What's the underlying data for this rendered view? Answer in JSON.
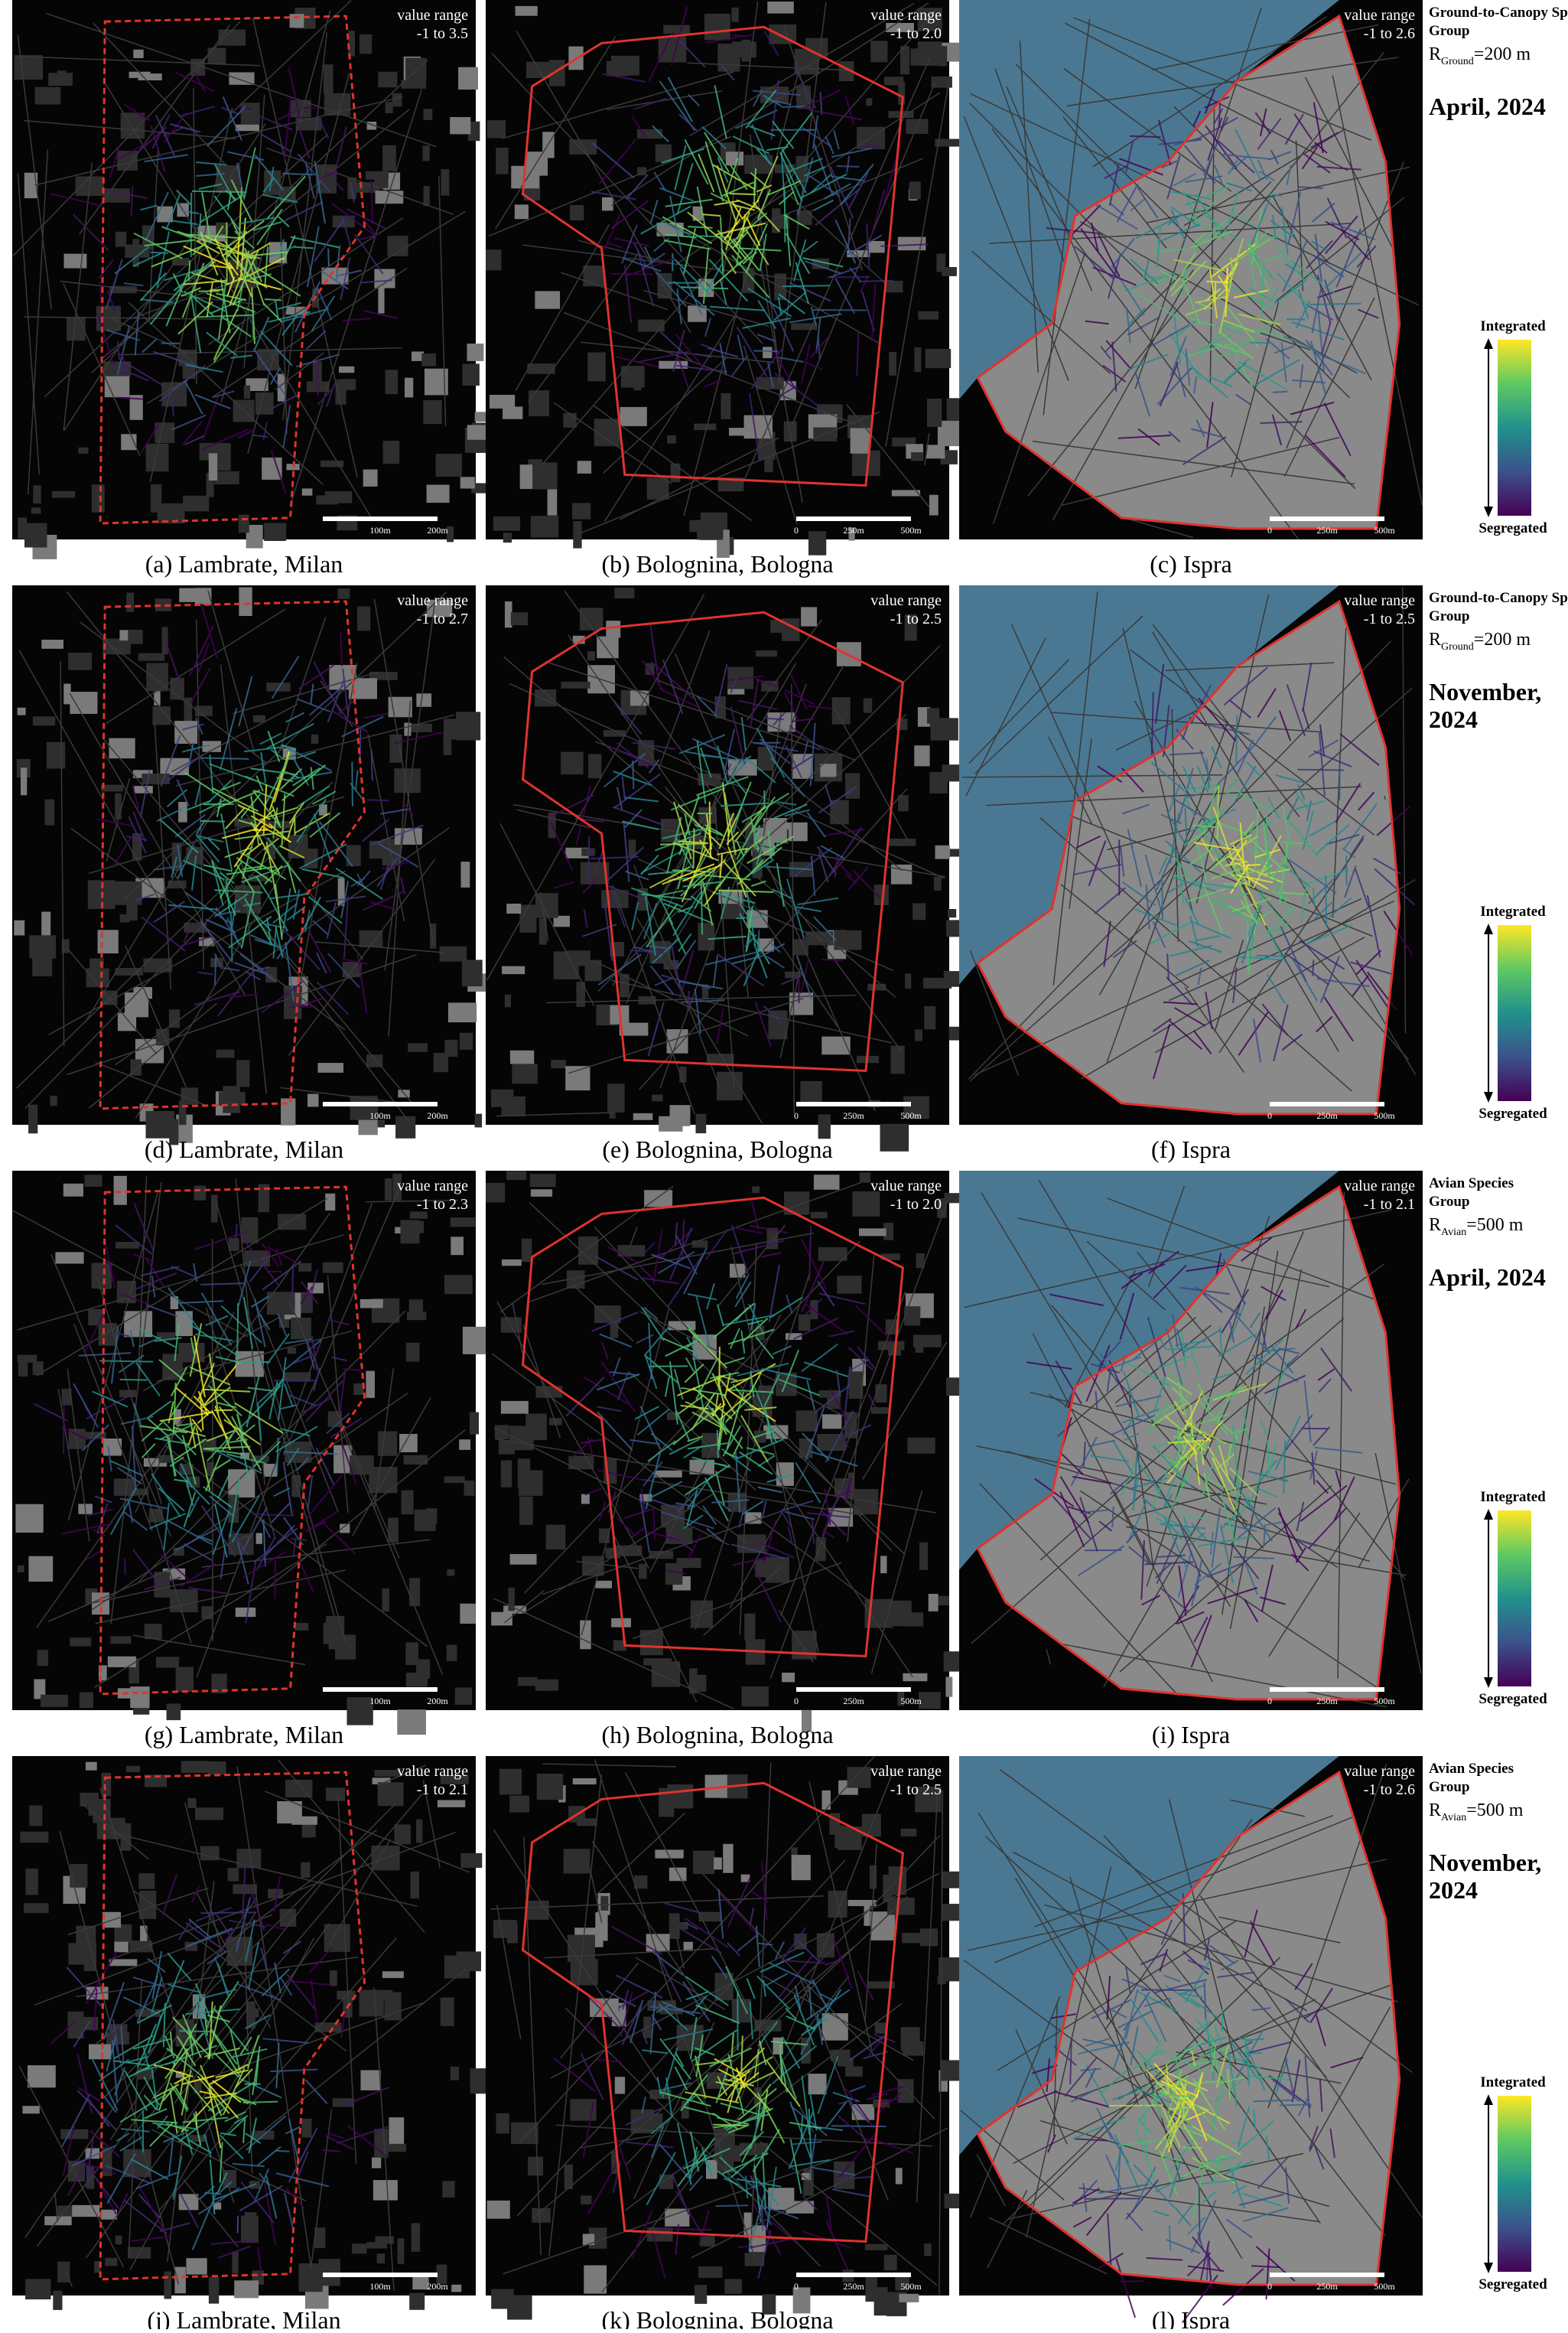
{
  "rows": [
    {
      "panels": [
        {
          "value_range_title": "value range",
          "value_range": "-1 to 3.5",
          "scale": [
            "100m",
            "200m"
          ],
          "caption": "(a) Lambrate, Milan"
        },
        {
          "value_range_title": "value range",
          "value_range": "-1 to 2.0",
          "scale": [
            "0",
            "250m",
            "500m"
          ],
          "caption": "(b) Bolognina, Bologna"
        },
        {
          "value_range_title": "value range",
          "value_range": "-1 to 2.6",
          "scale": [
            "0",
            "250m",
            "500m"
          ],
          "caption": "(c) Ispra"
        }
      ],
      "legend": {
        "group": "Ground-to-Canopy Species Group",
        "radius_symbol": "R",
        "radius_subscript": "Ground",
        "radius_value": "=200 m",
        "date": "April, 2024",
        "top_label": "Integrated",
        "bottom_label": "Segregated"
      }
    },
    {
      "panels": [
        {
          "value_range_title": "value range",
          "value_range": "-1 to 2.7",
          "scale": [
            "100m",
            "200m"
          ],
          "caption": "(d) Lambrate, Milan"
        },
        {
          "value_range_title": "value range",
          "value_range": "-1 to 2.5",
          "scale": [
            "0",
            "250m",
            "500m"
          ],
          "caption": "(e) Bolognina, Bologna"
        },
        {
          "value_range_title": "value range",
          "value_range": "-1 to 2.5",
          "scale": [
            "0",
            "250m",
            "500m"
          ],
          "caption": "(f) Ispra"
        }
      ],
      "legend": {
        "group": "Ground-to-Canopy Species Group",
        "radius_symbol": "R",
        "radius_subscript": "Ground",
        "radius_value": "=200 m",
        "date": "November, 2024",
        "top_label": "Integrated",
        "bottom_label": "Segregated"
      }
    },
    {
      "panels": [
        {
          "value_range_title": "value range",
          "value_range": "-1 to 2.3",
          "scale": [
            "100m",
            "200m"
          ],
          "caption": "(g) Lambrate, Milan"
        },
        {
          "value_range_title": "value range",
          "value_range": "-1 to 2.0",
          "scale": [
            "0",
            "250m",
            "500m"
          ],
          "caption": "(h) Bolognina, Bologna"
        },
        {
          "value_range_title": "value range",
          "value_range": "-1 to 2.1",
          "scale": [
            "0",
            "250m",
            "500m"
          ],
          "caption": "(i) Ispra"
        }
      ],
      "legend": {
        "group": "Avian Species Group",
        "radius_symbol": "R",
        "radius_subscript": "Avian",
        "radius_value": "=500 m",
        "date": "April, 2024",
        "top_label": "Integrated",
        "bottom_label": "Segregated"
      }
    },
    {
      "panels": [
        {
          "value_range_title": "value range",
          "value_range": "-1 to 2.1",
          "scale": [
            "100m",
            "200m"
          ],
          "caption": "(j) Lambrate, Milan"
        },
        {
          "value_range_title": "value range",
          "value_range": "-1 to 2.5",
          "scale": [
            "0",
            "250m",
            "500m"
          ],
          "caption": "(k) Bolognina, Bologna"
        },
        {
          "value_range_title": "value range",
          "value_range": "-1 to 2.6",
          "scale": [
            "0",
            "250m",
            "500m"
          ],
          "caption": "(l) Ispra"
        }
      ],
      "legend": {
        "group": "Avian Species Group",
        "radius_symbol": "R",
        "radius_subscript": "Avian",
        "radius_value": "=500 m",
        "date": "November, 2024",
        "top_label": "Integrated",
        "bottom_label": "Segregated"
      }
    }
  ]
}
